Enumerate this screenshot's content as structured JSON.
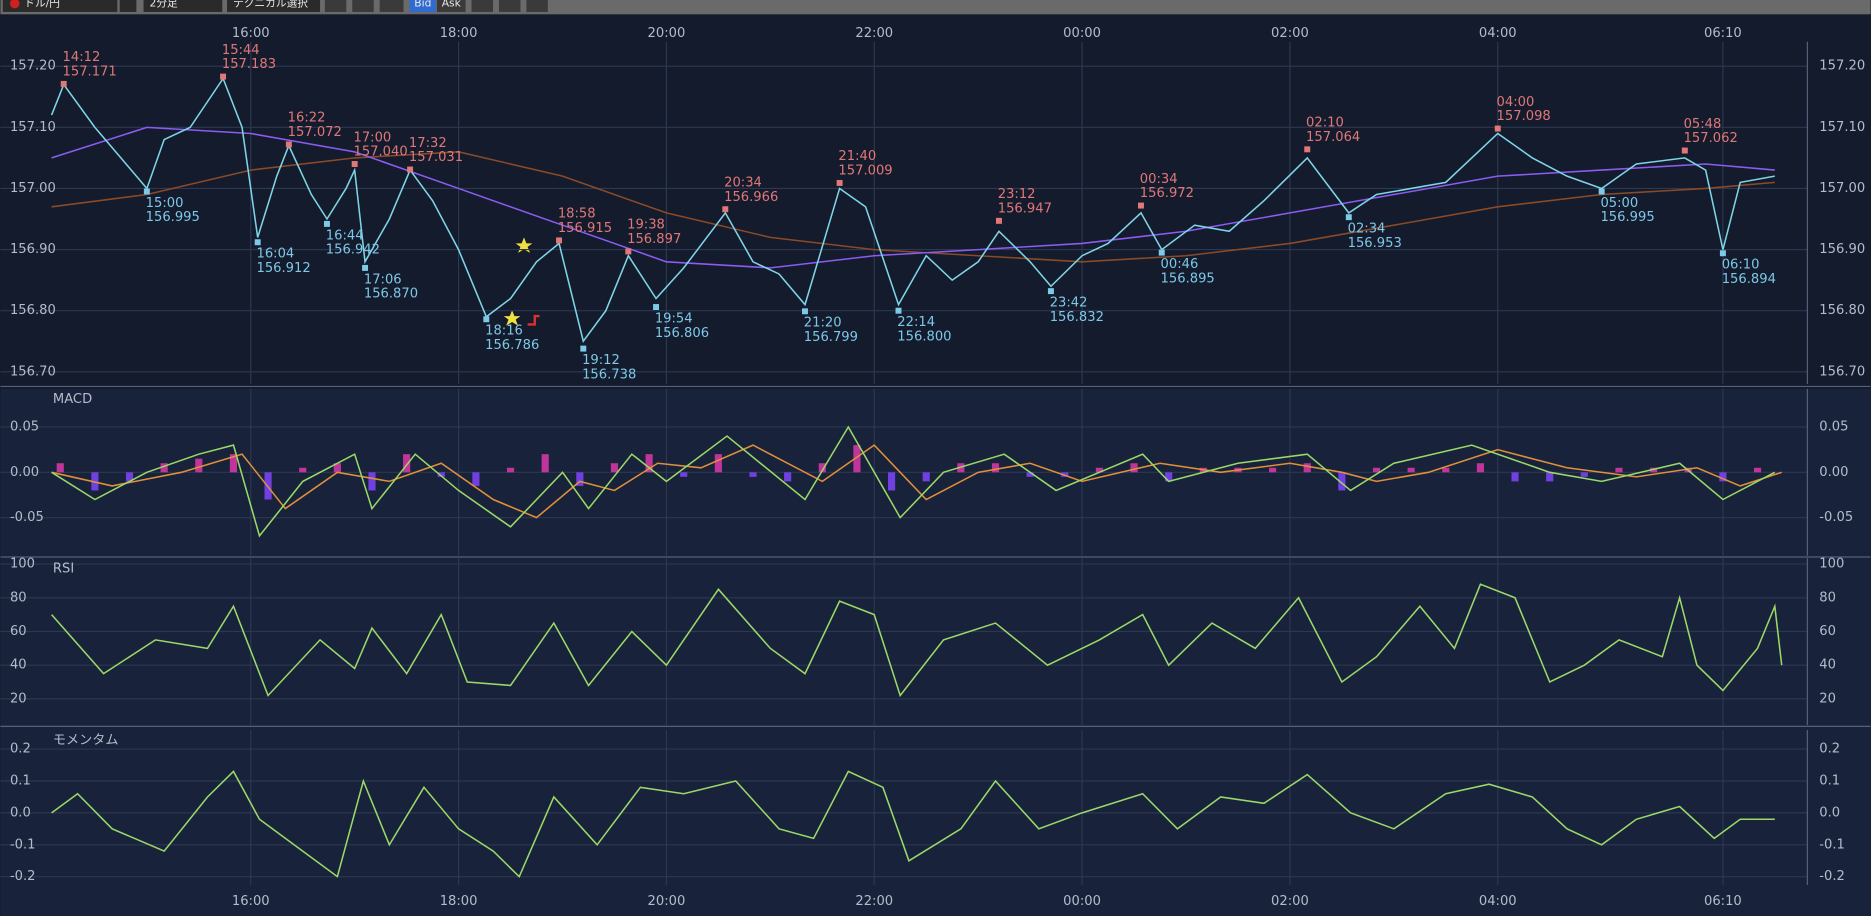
{
  "toolbar": {
    "symbol": "ドル/円",
    "timeframe": "2分足",
    "technical": "テクニカル選択",
    "bid": "Bid",
    "ask": "Ask"
  },
  "chart_data": [
    {
      "type": "line",
      "xlim": [
        "14:03",
        "06:45"
      ],
      "xticks": [
        "16:00",
        "18:00",
        "20:00",
        "22:00",
        "00:00",
        "02:00",
        "04:00",
        "06:10"
      ],
      "ylim": [
        156.68,
        157.24
      ],
      "yticks": [
        {
          "value": 156.7,
          "label": "156.70"
        },
        {
          "value": 156.8,
          "label": "156.80"
        },
        {
          "value": 156.9,
          "label": "156.90"
        },
        {
          "value": 157,
          "label": "157.00"
        },
        {
          "value": 157.1,
          "label": "157.10"
        },
        {
          "value": 157.2,
          "label": "157.20"
        }
      ],
      "grid": true,
      "series": [
        {
          "color": "#8a4a28",
          "x": [
            "14:05",
            "15:00",
            "16:00",
            "17:00",
            "18:00",
            "19:00",
            "20:00",
            "21:00",
            "22:00",
            "23:00",
            "00:00",
            "01:00",
            "02:00",
            "03:00",
            "04:00",
            "05:00",
            "06:00",
            "06:40"
          ],
          "values": [
            156.97,
            156.99,
            157.03,
            157.05,
            157.06,
            157.02,
            156.96,
            156.92,
            156.9,
            156.89,
            156.88,
            156.89,
            156.91,
            156.94,
            156.97,
            156.99,
            157.0,
            157.01
          ]
        },
        {
          "color": "#8a5cf0",
          "x": [
            "14:05",
            "15:00",
            "16:00",
            "17:00",
            "18:00",
            "19:00",
            "20:00",
            "21:00",
            "22:00",
            "23:00",
            "00:00",
            "01:00",
            "02:00",
            "03:00",
            "04:00",
            "05:00",
            "06:00",
            "06:40"
          ],
          "values": [
            157.05,
            157.1,
            157.09,
            157.06,
            157.0,
            156.94,
            156.88,
            156.87,
            156.89,
            156.9,
            156.91,
            156.93,
            156.96,
            156.99,
            157.02,
            157.03,
            157.04,
            157.03
          ]
        },
        {
          "color": "#7fd4e6",
          "x": [
            "14:05",
            "14:12",
            "14:30",
            "14:45",
            "15:00",
            "15:10",
            "15:25",
            "15:44",
            "15:55",
            "16:04",
            "16:15",
            "16:22",
            "16:35",
            "16:44",
            "16:55",
            "17:00",
            "17:06",
            "17:20",
            "17:32",
            "17:45",
            "18:00",
            "18:16",
            "18:30",
            "18:45",
            "18:58",
            "19:12",
            "19:25",
            "19:38",
            "19:54",
            "20:10",
            "20:34",
            "20:50",
            "21:05",
            "21:20",
            "21:40",
            "21:55",
            "22:14",
            "22:30",
            "22:45",
            "23:00",
            "23:12",
            "23:30",
            "23:42",
            "00:00",
            "00:15",
            "00:34",
            "00:46",
            "01:05",
            "01:25",
            "01:45",
            "02:10",
            "02:34",
            "02:50",
            "03:10",
            "03:30",
            "03:45",
            "04:00",
            "04:20",
            "04:40",
            "05:00",
            "05:20",
            "05:48",
            "06:00",
            "06:10",
            "06:20",
            "06:40"
          ],
          "values": [
            157.12,
            157.17,
            157.1,
            157.05,
            157.0,
            157.08,
            157.1,
            157.18,
            157.1,
            156.92,
            157.02,
            157.07,
            156.99,
            156.95,
            157.0,
            157.03,
            156.88,
            156.95,
            157.03,
            156.98,
            156.9,
            156.79,
            156.82,
            156.88,
            156.91,
            156.75,
            156.8,
            156.89,
            156.82,
            156.87,
            156.96,
            156.88,
            156.86,
            156.81,
            157.0,
            156.97,
            156.81,
            156.89,
            156.85,
            156.88,
            156.93,
            156.88,
            156.84,
            156.89,
            156.91,
            156.96,
            156.9,
            156.94,
            156.93,
            156.98,
            157.05,
            156.96,
            156.99,
            157.0,
            157.01,
            157.05,
            157.09,
            157.05,
            157.02,
            157.0,
            157.04,
            157.05,
            157.03,
            156.9,
            157.01,
            157.02
          ]
        }
      ],
      "highs": {
        "color": "#e07878",
        "x": [
          "14:12",
          "15:44",
          "16:22",
          "17:00",
          "17:32",
          "18:58",
          "19:38",
          "20:34",
          "21:40",
          "23:12",
          "00:34",
          "02:10",
          "04:00",
          "05:48"
        ],
        "values": [
          157.171,
          157.183,
          157.072,
          157.04,
          157.031,
          156.915,
          156.897,
          156.966,
          157.009,
          156.947,
          156.972,
          157.064,
          157.098,
          157.062
        ],
        "value_labels": [
          "157.171",
          "157.183",
          "157.072",
          "157.040",
          "157.031",
          "156.915",
          "156.897",
          "156.966",
          "157.009",
          "156.947",
          "156.972",
          "157.064",
          "157.098",
          "157.062"
        ]
      },
      "lows": {
        "color": "#7ec8e8",
        "x": [
          "15:00",
          "16:04",
          "16:44",
          "17:06",
          "18:16",
          "19:12",
          "19:54",
          "21:20",
          "22:14",
          "23:42",
          "00:46",
          "02:34",
          "05:00",
          "06:10"
        ],
        "values": [
          156.995,
          156.912,
          156.942,
          156.87,
          156.786,
          156.738,
          156.806,
          156.799,
          156.8,
          156.832,
          156.895,
          156.953,
          156.995,
          156.894
        ],
        "value_labels": [
          "156.995",
          "156.912",
          "156.942",
          "156.870",
          "156.786",
          "156.738",
          "156.806",
          "156.799",
          "156.800",
          "156.832",
          "156.895",
          "156.953",
          "156.995",
          "156.894"
        ]
      }
    },
    {
      "type": "line",
      "title": "MACD",
      "xlim": [
        "14:03",
        "06:45"
      ],
      "xticks": [
        "16:00",
        "18:00",
        "20:00",
        "22:00",
        "00:00",
        "02:00",
        "04:00",
        "06:10"
      ],
      "ylim": [
        -0.092,
        0.092
      ],
      "yticks": [
        -0.05,
        {
          "value": 0,
          "label": "0.00"
        },
        0.05
      ],
      "grid": true,
      "series": [
        {
          "type": "bar",
          "color": "#c0359a",
          "negative_color": "#7040e0",
          "x": [
            "14:10",
            "14:30",
            "14:50",
            "15:10",
            "15:30",
            "15:50",
            "16:10",
            "16:30",
            "16:50",
            "17:10",
            "17:30",
            "17:50",
            "18:10",
            "18:30",
            "18:50",
            "19:10",
            "19:30",
            "19:50",
            "20:10",
            "20:30",
            "20:50",
            "21:10",
            "21:30",
            "21:50",
            "22:10",
            "22:30",
            "22:50",
            "23:10",
            "23:30",
            "23:50",
            "00:10",
            "00:30",
            "00:50",
            "01:10",
            "01:30",
            "01:50",
            "02:10",
            "02:30",
            "02:50",
            "03:10",
            "03:30",
            "03:50",
            "04:10",
            "04:30",
            "04:50",
            "05:10",
            "05:30",
            "05:50",
            "06:10",
            "06:30"
          ],
          "values": [
            0.01,
            -0.02,
            -0.01,
            0.01,
            0.015,
            0.02,
            -0.03,
            0.005,
            0.01,
            -0.02,
            0.02,
            -0.005,
            -0.015,
            0.005,
            0.02,
            -0.015,
            0.01,
            0.02,
            -0.005,
            0.02,
            -0.005,
            -0.01,
            0.01,
            0.03,
            -0.02,
            -0.01,
            0.01,
            0.01,
            -0.005,
            -0.005,
            0.005,
            0.01,
            -0.01,
            0.005,
            0.005,
            0.005,
            0.01,
            -0.02,
            0.005,
            0.005,
            0.005,
            0.01,
            -0.01,
            -0.01,
            -0.005,
            0.005,
            0.005,
            0.005,
            -0.01,
            0.005
          ]
        },
        {
          "color": "#e0903a",
          "x": [
            "14:05",
            "14:40",
            "15:20",
            "15:55",
            "16:20",
            "16:50",
            "17:20",
            "17:50",
            "18:20",
            "18:45",
            "19:10",
            "19:30",
            "19:55",
            "20:20",
            "20:50",
            "21:30",
            "22:00",
            "22:30",
            "23:00",
            "23:30",
            "00:00",
            "00:45",
            "01:20",
            "02:00",
            "02:30",
            "02:50",
            "03:20",
            "04:00",
            "04:40",
            "05:20",
            "05:55",
            "06:20",
            "06:44"
          ],
          "values": [
            0.0,
            -0.015,
            0.0,
            0.02,
            -0.04,
            0.0,
            -0.01,
            0.01,
            -0.03,
            -0.05,
            -0.01,
            -0.02,
            0.01,
            0.005,
            0.03,
            -0.01,
            0.03,
            -0.03,
            0.0,
            0.01,
            -0.01,
            0.01,
            0.0,
            0.01,
            0.0,
            -0.01,
            0.0,
            0.025,
            0.005,
            -0.005,
            0.005,
            -0.015,
            0.0
          ]
        },
        {
          "color": "#9ad868",
          "x": [
            "14:05",
            "14:30",
            "15:00",
            "15:30",
            "15:50",
            "16:05",
            "16:30",
            "17:00",
            "17:10",
            "17:35",
            "18:00",
            "18:30",
            "19:00",
            "19:15",
            "19:40",
            "20:00",
            "20:35",
            "21:20",
            "21:45",
            "22:15",
            "22:40",
            "23:15",
            "23:45",
            "00:35",
            "00:50",
            "01:30",
            "02:10",
            "02:35",
            "03:00",
            "03:45",
            "04:30",
            "05:00",
            "05:45",
            "06:10",
            "06:40"
          ],
          "values": [
            0.0,
            -0.03,
            0.0,
            0.02,
            0.03,
            -0.07,
            -0.01,
            0.02,
            -0.04,
            0.02,
            -0.02,
            -0.06,
            0.0,
            -0.04,
            0.02,
            -0.01,
            0.04,
            -0.03,
            0.05,
            -0.05,
            0.0,
            0.02,
            -0.02,
            0.02,
            -0.01,
            0.01,
            0.02,
            -0.02,
            0.01,
            0.03,
            0.0,
            -0.01,
            0.01,
            -0.03,
            0.0
          ]
        }
      ]
    },
    {
      "type": "line",
      "title": "RSI",
      "xlim": [
        "14:03",
        "06:45"
      ],
      "xticks": [
        "16:00",
        "18:00",
        "20:00",
        "22:00",
        "00:00",
        "02:00",
        "04:00",
        "06:10"
      ],
      "ylim": [
        4.4,
        103.5
      ],
      "yticks": [
        20,
        40,
        60,
        80,
        100
      ],
      "grid": true,
      "series": [
        {
          "color": "#9ad868",
          "x": [
            "14:05",
            "14:35",
            "15:05",
            "15:35",
            "15:50",
            "16:10",
            "16:40",
            "17:00",
            "17:10",
            "17:30",
            "17:50",
            "18:05",
            "18:30",
            "18:55",
            "19:15",
            "19:40",
            "20:00",
            "20:30",
            "21:00",
            "21:20",
            "21:40",
            "22:00",
            "22:15",
            "22:40",
            "23:10",
            "23:40",
            "00:10",
            "00:35",
            "00:50",
            "01:15",
            "01:40",
            "02:05",
            "02:30",
            "02:50",
            "03:15",
            "03:35",
            "03:50",
            "04:10",
            "04:30",
            "04:50",
            "05:10",
            "05:35",
            "05:45",
            "05:55",
            "06:10",
            "06:30",
            "06:40",
            "06:44"
          ],
          "values": [
            70,
            35,
            55,
            50,
            75,
            22,
            55,
            38,
            62,
            35,
            70,
            30,
            28,
            65,
            28,
            60,
            40,
            85,
            50,
            35,
            78,
            70,
            22,
            55,
            65,
            40,
            55,
            70,
            40,
            65,
            50,
            80,
            30,
            45,
            75,
            50,
            88,
            80,
            30,
            40,
            55,
            45,
            80,
            40,
            25,
            50,
            75,
            40
          ]
        }
      ]
    },
    {
      "type": "line",
      "title": "モメンタム",
      "xlim": [
        "14:03",
        "06:45"
      ],
      "xticks": [
        "16:00",
        "18:00",
        "20:00",
        "22:00",
        "00:00",
        "02:00",
        "04:00",
        "06:10"
      ],
      "ylim": [
        -0.226,
        0.26
      ],
      "yticks": [
        -0.2,
        -0.1,
        {
          "value": 0,
          "label": "0.0"
        },
        0.1,
        0.2
      ],
      "grid": true,
      "series": [
        {
          "color": "#9ad868",
          "x": [
            "14:05",
            "14:20",
            "14:40",
            "15:10",
            "15:35",
            "15:50",
            "16:05",
            "16:25",
            "16:50",
            "17:05",
            "17:20",
            "17:40",
            "18:00",
            "18:20",
            "18:35",
            "18:55",
            "19:20",
            "19:45",
            "20:10",
            "20:40",
            "21:05",
            "21:25",
            "21:45",
            "22:05",
            "22:20",
            "22:50",
            "23:10",
            "23:35",
            "00:00",
            "00:35",
            "00:55",
            "01:20",
            "01:45",
            "02:10",
            "02:35",
            "03:00",
            "03:30",
            "03:55",
            "04:20",
            "04:40",
            "05:00",
            "05:20",
            "05:45",
            "06:05",
            "06:20",
            "06:40"
          ],
          "values": [
            0.0,
            0.06,
            -0.05,
            -0.12,
            0.05,
            0.13,
            -0.02,
            -0.1,
            -0.2,
            0.1,
            -0.1,
            0.08,
            -0.05,
            -0.12,
            -0.2,
            0.05,
            -0.1,
            0.08,
            0.06,
            0.1,
            -0.05,
            -0.08,
            0.13,
            0.08,
            -0.15,
            -0.05,
            0.1,
            -0.05,
            0.0,
            0.06,
            -0.05,
            0.05,
            0.03,
            0.12,
            0.0,
            -0.05,
            0.06,
            0.09,
            0.05,
            -0.05,
            -0.1,
            -0.02,
            0.02,
            -0.08,
            -0.02,
            -0.02
          ]
        }
      ]
    }
  ]
}
